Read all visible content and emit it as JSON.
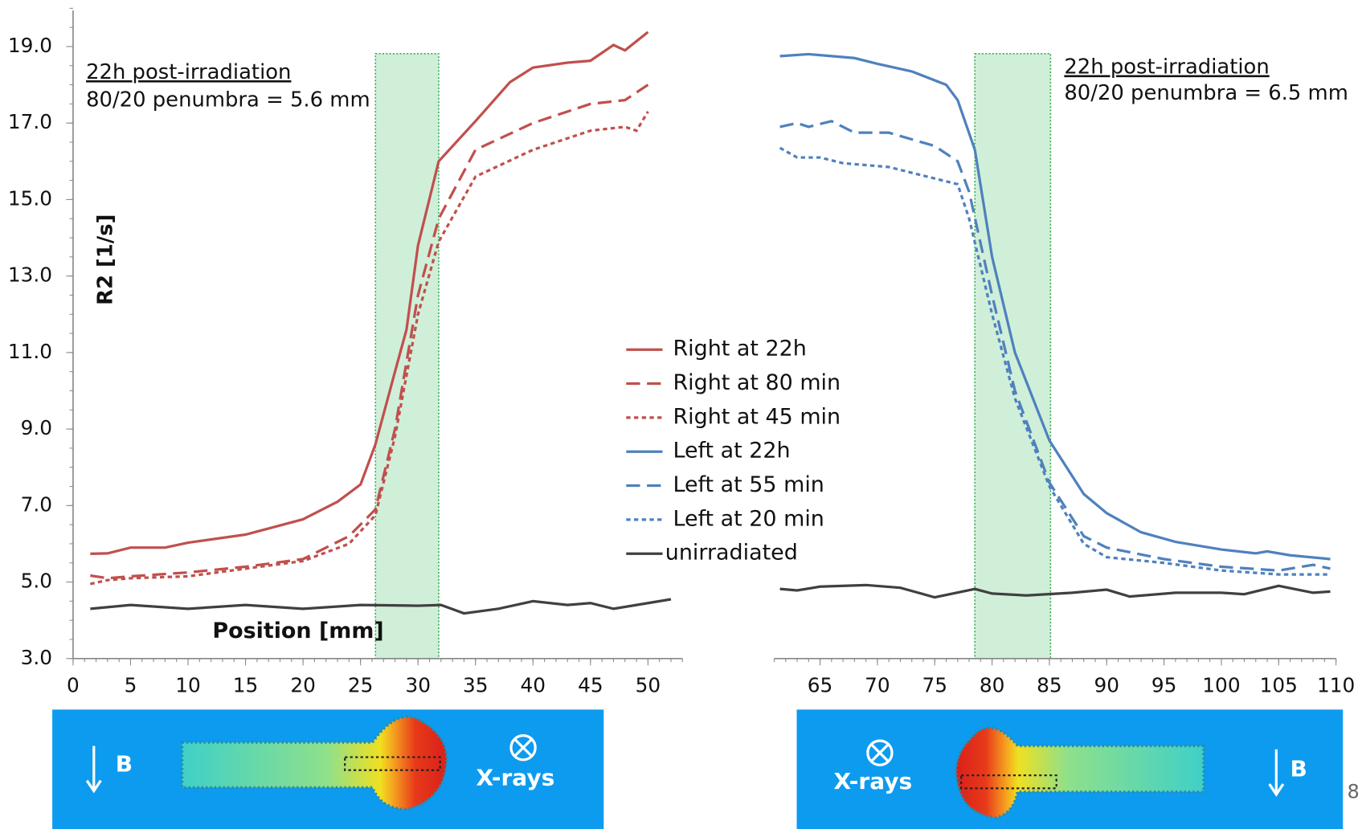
{
  "chart_data": [
    {
      "type": "line",
      "xlabel": "Position [mm]",
      "ylabel": "R2 [1/s]",
      "annotations": [
        "22h post-irradiation",
        "80/20 penumbra = 5.6 mm"
      ],
      "shaded_region": [
        26.3,
        31.8
      ],
      "xlim": [
        0,
        53
      ],
      "xticks": [
        0,
        5,
        10,
        15,
        20,
        25,
        30,
        35,
        40,
        45,
        50
      ],
      "ylim": [
        3,
        20
      ],
      "yticks": [
        {
          "value": 3,
          "label": "3.0"
        },
        {
          "value": 5,
          "label": "5.0"
        },
        {
          "value": 7,
          "label": "7.0"
        },
        {
          "value": 9,
          "label": "9.0"
        },
        {
          "value": 11,
          "label": "11.0"
        },
        {
          "value": 13,
          "label": "13.0"
        },
        {
          "value": 15,
          "label": "15.0"
        },
        {
          "value": 17,
          "label": "17.0"
        },
        {
          "value": 19,
          "label": "19.0"
        }
      ],
      "image_labels": [
        "B",
        "X-rays"
      ],
      "series": [
        {
          "name": "Right at 22h",
          "color": "#c0504d",
          "line_style": "solid",
          "x": [
            1.5,
            3,
            5,
            8,
            10,
            15,
            20,
            23,
            25,
            26.3,
            28,
            29,
            30,
            31.8,
            35,
            38,
            40,
            43,
            45,
            47,
            48,
            50
          ],
          "values": [
            5.74,
            5.75,
            5.9,
            5.9,
            6.03,
            6.24,
            6.64,
            7.1,
            7.55,
            8.6,
            10.5,
            11.6,
            13.8,
            16.0,
            17.05,
            18.07,
            18.45,
            18.58,
            18.63,
            19.04,
            18.9,
            19.38
          ]
        },
        {
          "name": "Right at 80 min",
          "color": "#c0504d",
          "line_style": "dashed",
          "x": [
            1.5,
            3,
            5,
            10,
            15,
            20,
            24,
            26.3,
            28,
            30,
            31.8,
            35,
            40,
            45,
            48,
            50
          ],
          "values": [
            5.17,
            5.1,
            5.15,
            5.25,
            5.4,
            5.6,
            6.2,
            6.9,
            9.0,
            12.5,
            14.5,
            16.3,
            17.0,
            17.5,
            17.6,
            18.0
          ]
        },
        {
          "name": "Right at 45 min",
          "color": "#c0504d",
          "line_style": "dotted",
          "x": [
            1.5,
            3,
            5,
            10,
            15,
            20,
            24,
            26.3,
            28,
            30,
            31.8,
            35,
            40,
            45,
            48,
            49,
            50
          ],
          "values": [
            4.95,
            5.05,
            5.1,
            5.15,
            5.35,
            5.55,
            6.0,
            6.75,
            8.8,
            12.0,
            13.9,
            15.6,
            16.3,
            16.8,
            16.9,
            16.8,
            17.3
          ]
        },
        {
          "name": "unirradiated",
          "color": "#404040",
          "line_style": "solid",
          "x": [
            1.5,
            5,
            10,
            15,
            20,
            25,
            30,
            32,
            34,
            37,
            40,
            43,
            45,
            47,
            50,
            52
          ],
          "values": [
            4.3,
            4.4,
            4.3,
            4.4,
            4.3,
            4.4,
            4.38,
            4.4,
            4.18,
            4.3,
            4.5,
            4.4,
            4.45,
            4.3,
            4.45,
            4.55
          ]
        }
      ]
    },
    {
      "type": "line",
      "annotations": [
        "22h post-irradiation",
        "80/20 penumbra = 6.5 mm"
      ],
      "shaded_region": [
        78.5,
        85.1
      ],
      "xlim": [
        61,
        110
      ],
      "xticks": [
        65,
        70,
        75,
        80,
        85,
        90,
        95,
        100,
        105,
        110
      ],
      "ylim": [
        3,
        20
      ],
      "image_labels": [
        "X-rays",
        "B"
      ],
      "page_number": "8",
      "series": [
        {
          "name": "Left at 22h",
          "color": "#4f81bd",
          "line_style": "solid",
          "x": [
            61.5,
            64,
            68,
            70,
            73,
            76,
            77,
            78.5,
            80,
            82,
            85,
            88,
            90,
            93,
            96,
            100,
            103,
            104,
            106,
            109.5
          ],
          "values": [
            18.75,
            18.8,
            18.7,
            18.55,
            18.35,
            18.0,
            17.6,
            16.3,
            13.5,
            11.0,
            8.7,
            7.3,
            6.8,
            6.3,
            6.05,
            5.85,
            5.75,
            5.8,
            5.7,
            5.6
          ]
        },
        {
          "name": "Left at 55 min",
          "color": "#4f81bd",
          "line_style": "dashed",
          "x": [
            61.5,
            63,
            64,
            66,
            68,
            71,
            75,
            77,
            78,
            80,
            82,
            85,
            88,
            90,
            95,
            100,
            105,
            108,
            109.5
          ],
          "values": [
            16.9,
            17.0,
            16.9,
            17.05,
            16.75,
            16.75,
            16.4,
            16.0,
            15.2,
            12.5,
            10.0,
            7.6,
            6.2,
            5.9,
            5.6,
            5.4,
            5.3,
            5.45,
            5.35
          ]
        },
        {
          "name": "Left at 20 min",
          "color": "#4f81bd",
          "line_style": "dotted",
          "x": [
            61.5,
            63,
            65,
            67,
            71,
            75,
            77,
            78,
            80,
            82,
            85,
            88,
            90,
            95,
            100,
            105,
            109.5
          ],
          "values": [
            16.35,
            16.1,
            16.1,
            15.95,
            15.85,
            15.55,
            15.4,
            14.5,
            12.0,
            9.8,
            7.5,
            6.0,
            5.65,
            5.5,
            5.3,
            5.2,
            5.2
          ]
        },
        {
          "color": "#404040",
          "line_style": "solid",
          "x": [
            61.5,
            63,
            65,
            69,
            72,
            75,
            78.5,
            80,
            83,
            87,
            90,
            92,
            96,
            100,
            102,
            105,
            108,
            109.5
          ],
          "values": [
            4.82,
            4.78,
            4.88,
            4.92,
            4.85,
            4.6,
            4.82,
            4.7,
            4.65,
            4.72,
            4.8,
            4.62,
            4.72,
            4.72,
            4.68,
            4.9,
            4.72,
            4.75
          ]
        }
      ]
    }
  ]
}
